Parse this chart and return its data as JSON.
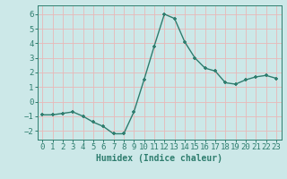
{
  "x": [
    0,
    1,
    2,
    3,
    4,
    5,
    6,
    7,
    8,
    9,
    10,
    11,
    12,
    13,
    14,
    15,
    16,
    17,
    18,
    19,
    20,
    21,
    22,
    23
  ],
  "y": [
    -0.9,
    -0.9,
    -0.8,
    -0.7,
    -1.0,
    -1.4,
    -1.7,
    -2.2,
    -2.2,
    -0.7,
    1.5,
    3.8,
    6.0,
    5.7,
    4.1,
    3.0,
    2.3,
    2.1,
    1.3,
    1.2,
    1.5,
    1.7,
    1.8,
    1.6
  ],
  "line_color": "#2e7d6e",
  "marker": "+",
  "bg_color": "#cce8e8",
  "grid_color": "#b8d8d8",
  "xlabel": "Humidex (Indice chaleur)",
  "xlim": [
    -0.5,
    23.5
  ],
  "ylim": [
    -2.6,
    6.6
  ],
  "yticks": [
    -2,
    -1,
    0,
    1,
    2,
    3,
    4,
    5,
    6
  ],
  "xticks": [
    0,
    1,
    2,
    3,
    4,
    5,
    6,
    7,
    8,
    9,
    10,
    11,
    12,
    13,
    14,
    15,
    16,
    17,
    18,
    19,
    20,
    21,
    22,
    23
  ],
  "xlabel_fontsize": 7,
  "tick_fontsize": 6.5,
  "linewidth": 1.0,
  "markersize": 3.5,
  "markeredgewidth": 1.2
}
